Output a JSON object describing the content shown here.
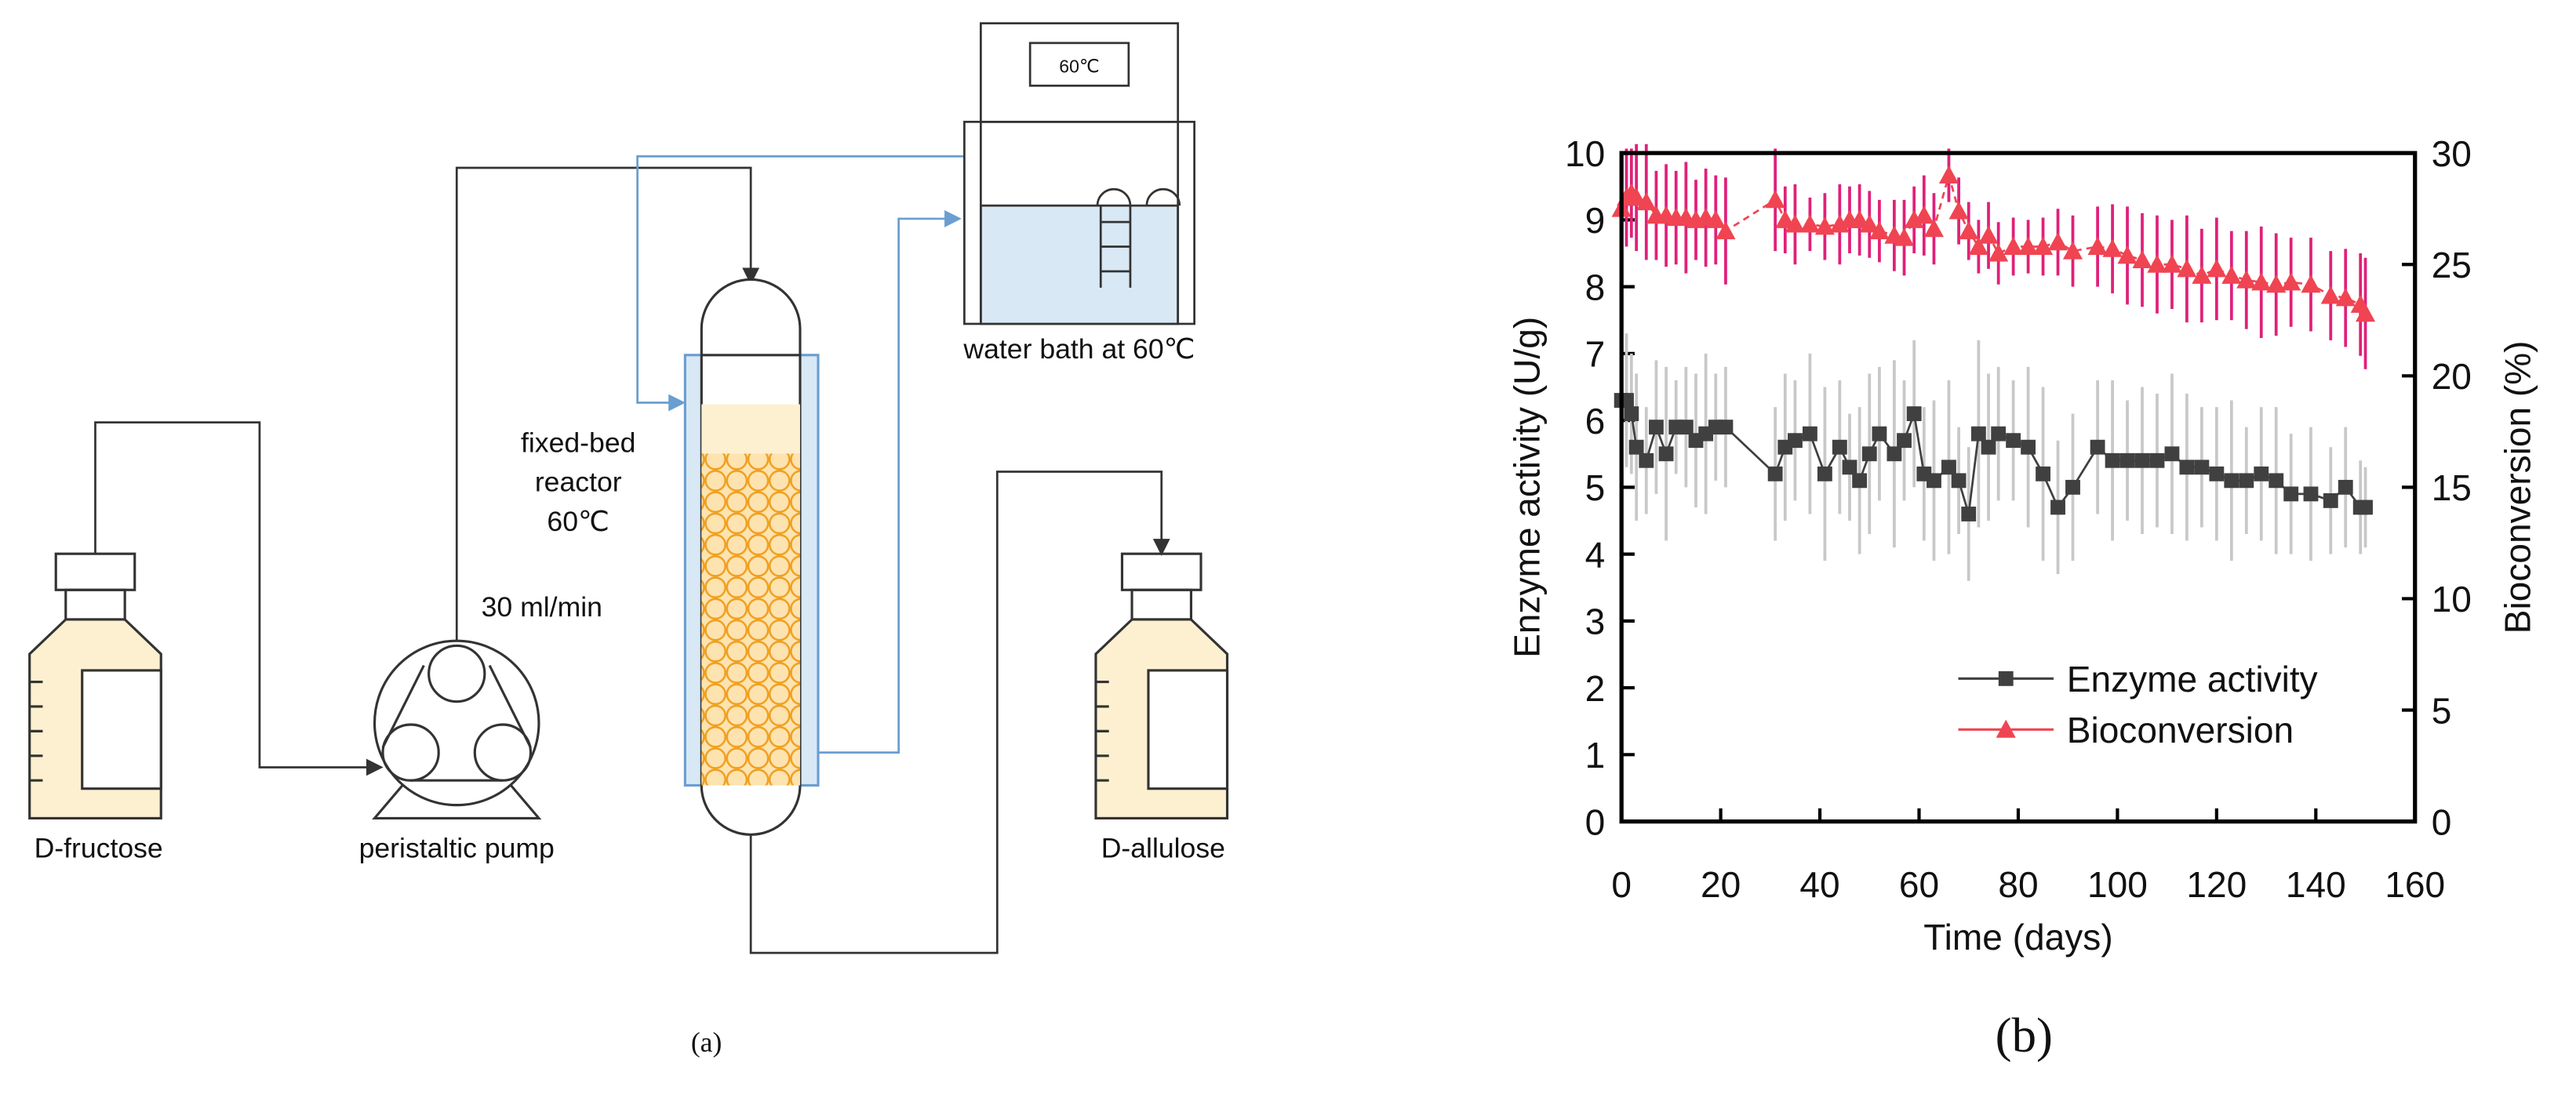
{
  "diagram": {
    "labels": {
      "feed": "D-fructose",
      "pump": "peristaltic pump",
      "flow": "30 ml/min",
      "reactor": [
        "fixed-bed",
        "reactor",
        "60℃"
      ],
      "bath": "water bath at 60℃",
      "display": "60℃",
      "product": "D-allulose"
    },
    "caption": "(a)"
  },
  "chart_data": {
    "type": "line",
    "caption": "(b)",
    "x_label": "Time (days)",
    "y_label": "Enzyme activity (U/g)",
    "y2_label": "Bioconversion (%)",
    "xlim": [
      0,
      160
    ],
    "xticks": [
      0,
      20,
      40,
      60,
      80,
      100,
      120,
      140,
      160
    ],
    "ylim": [
      0,
      10
    ],
    "yticks": [
      0,
      1,
      2,
      3,
      4,
      5,
      6,
      7,
      8,
      9,
      10
    ],
    "y2lim": [
      0,
      30
    ],
    "y2ticks": [
      0,
      5,
      10,
      15,
      20,
      25,
      30
    ],
    "legend": "lower center",
    "x": [
      0,
      1,
      2,
      3,
      5,
      7,
      9,
      11,
      13,
      15,
      17,
      19,
      21,
      31,
      33,
      35,
      38,
      41,
      44,
      46,
      48,
      50,
      52,
      55,
      57,
      59,
      61,
      63,
      66,
      68,
      70,
      72,
      74,
      76,
      79,
      82,
      85,
      88,
      91,
      96,
      99,
      102,
      105,
      108,
      111,
      114,
      117,
      120,
      123,
      126,
      129,
      132,
      135,
      139,
      143,
      146,
      149,
      150
    ],
    "series": [
      {
        "name": "Enzyme activity",
        "color": "#404040",
        "error_color": "#c8c8c8",
        "marker": "square",
        "values": [
          6.3,
          6.3,
          6.1,
          5.6,
          5.4,
          5.9,
          5.5,
          5.9,
          5.9,
          5.7,
          5.8,
          5.9,
          5.9,
          5.2,
          5.6,
          5.7,
          5.8,
          5.2,
          5.6,
          5.3,
          5.1,
          5.5,
          5.8,
          5.5,
          5.7,
          6.1,
          5.2,
          5.1,
          5.3,
          5.1,
          4.6,
          5.8,
          5.6,
          5.8,
          5.7,
          5.6,
          5.2,
          4.7,
          5.0,
          5.6,
          5.4,
          5.4,
          5.4,
          5.4,
          5.5,
          5.3,
          5.3,
          5.2,
          5.1,
          5.1,
          5.2,
          5.1,
          4.9,
          4.9,
          4.8,
          5.0,
          4.7,
          4.7
        ],
        "errors": [
          1.2,
          1.0,
          0.9,
          1.1,
          0.8,
          1.0,
          1.3,
          0.7,
          0.9,
          1.0,
          1.2,
          0.8,
          0.9,
          1.0,
          1.1,
          0.9,
          1.2,
          1.3,
          1.0,
          0.8,
          1.1,
          1.2,
          1.0,
          1.4,
          0.9,
          1.1,
          1.0,
          1.2,
          1.3,
          0.8,
          1.0,
          1.4,
          1.1,
          1.0,
          0.9,
          1.2,
          1.3,
          1.0,
          1.1,
          1.0,
          1.2,
          0.9,
          1.1,
          1.0,
          1.2,
          1.1,
          0.9,
          1.0,
          1.2,
          0.8,
          1.0,
          1.1,
          0.9,
          1.0,
          0.8,
          0.9,
          0.7,
          0.6
        ]
      },
      {
        "name": "Bioconversion",
        "color": "#f04452",
        "error_color": "#e0207a",
        "marker": "triangle",
        "axis": "y2",
        "values": [
          27.5,
          28,
          28.2,
          28,
          27.8,
          27.2,
          27.2,
          27.1,
          27.1,
          27,
          27.1,
          27,
          26.5,
          27.9,
          27,
          26.8,
          26.8,
          26.7,
          26.8,
          27,
          27,
          26.8,
          26.5,
          26.3,
          26.2,
          27,
          27.2,
          26.6,
          29,
          27.4,
          26.5,
          25.8,
          26.3,
          25.5,
          25.8,
          25.8,
          25.8,
          26,
          25.6,
          25.8,
          25.7,
          25.4,
          25.2,
          25,
          25,
          24.8,
          24.5,
          24.8,
          24.5,
          24.3,
          24.2,
          24.1,
          24.2,
          24.1,
          23.6,
          23.5,
          23.2,
          22.8
        ],
        "errors": [
          2.5,
          2.2,
          2.0,
          2.4,
          2.6,
          2.0,
          2.3,
          2.1,
          2.5,
          1.8,
          2.2,
          2.0,
          2.4,
          2.3,
          1.5,
          1.8,
          1.2,
          1.5,
          1.8,
          1.5,
          1.6,
          1.5,
          1.4,
          1.6,
          1.7,
          1.5,
          1.8,
          1.6,
          1.2,
          1.5,
          1.3,
          1.2,
          1.5,
          1.4,
          1.3,
          1.2,
          1.3,
          1.5,
          1.6,
          1.8,
          2.0,
          2.2,
          2.1,
          2.2,
          2.0,
          2.4,
          2.1,
          2.3,
          2.0,
          2.2,
          2.5,
          2.3,
          2.0,
          2.1,
          2.0,
          2.2,
          2.3,
          2.5
        ]
      }
    ]
  }
}
